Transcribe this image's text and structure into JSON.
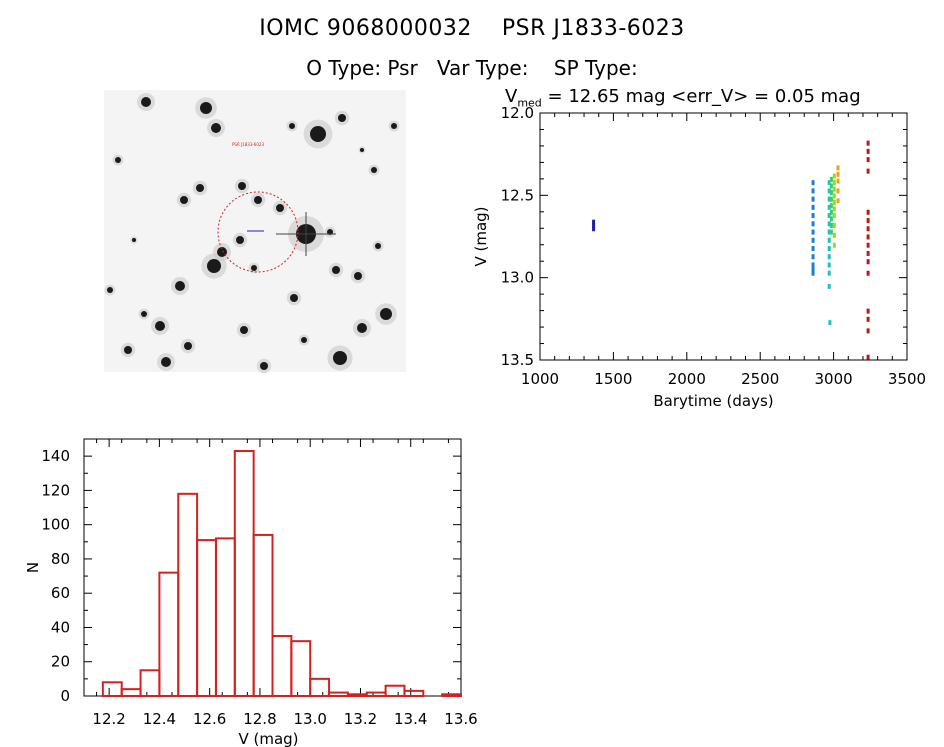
{
  "header": {
    "title": "IOMC 9068000032    PSR J1833-6023",
    "types": "O Type: Psr   Var Type:    SP Type:",
    "stats_prefix": "V",
    "stats_sub": "med",
    "stats_rest": " = 12.65 mag <err_V> = 0.05 mag"
  },
  "colors": {
    "hist": "#d62020",
    "circle": "#d62020",
    "marker": "#2020c0"
  },
  "image_panel": {
    "label_top": "PSR J1833-6023"
  },
  "chart_data": [
    {
      "type": "scatter",
      "title": "",
      "xlabel": "Barytime (days)",
      "ylabel": "V (mag)",
      "xlim": [
        1000,
        3500
      ],
      "ylim": [
        13.5,
        12.0
      ],
      "y_inverted": true,
      "xticks": [
        1000,
        1500,
        2000,
        2500,
        3000,
        3500
      ],
      "yticks": [
        "12.0",
        "12.5",
        "13.0",
        "13.5"
      ],
      "series": [
        {
          "color": "#2020a0",
          "x": [
            1365,
            1365,
            1365
          ],
          "y": [
            12.66,
            12.68,
            12.7
          ]
        },
        {
          "color": "#1e7fd0",
          "x": [
            2860,
            2860,
            2860,
            2860,
            2860,
            2860,
            2860,
            2860,
            2860,
            2860,
            2860,
            2860,
            2860
          ],
          "y": [
            12.42,
            12.47,
            12.52,
            12.57,
            12.62,
            12.67,
            12.72,
            12.77,
            12.82,
            12.87,
            12.92,
            12.95,
            12.97
          ]
        },
        {
          "color": "#20c0c0",
          "x": [
            2970,
            2970,
            2970,
            2970,
            2970,
            2970,
            2970,
            2970,
            2970,
            2970,
            2970,
            2970,
            2970,
            2975
          ],
          "y": [
            12.42,
            12.47,
            12.52,
            12.57,
            12.62,
            12.67,
            12.72,
            12.77,
            12.82,
            12.87,
            12.92,
            12.97,
            13.05,
            13.27
          ]
        },
        {
          "color": "#30d070",
          "x": [
            2985,
            2985,
            2985,
            2985,
            2985,
            2985,
            2985,
            2985,
            2985
          ],
          "y": [
            12.4,
            12.44,
            12.48,
            12.52,
            12.56,
            12.6,
            12.64,
            12.68,
            12.72
          ]
        },
        {
          "color": "#90e020",
          "x": [
            3005,
            3005,
            3005,
            3005,
            3005,
            3005,
            3005,
            3005,
            3005,
            3005
          ],
          "y": [
            12.38,
            12.42,
            12.46,
            12.5,
            12.54,
            12.58,
            12.62,
            12.68,
            12.74,
            12.8
          ]
        },
        {
          "color": "#f0a020",
          "x": [
            3030,
            3030,
            3030,
            3030,
            3030
          ],
          "y": [
            12.33,
            12.37,
            12.41,
            12.47,
            12.53
          ]
        },
        {
          "color": "#c01818",
          "x": [
            3235,
            3235,
            3235,
            3235,
            3235,
            3235,
            3235,
            3235,
            3235,
            3235,
            3235,
            3235,
            3235,
            3235,
            3235,
            3235
          ],
          "y": [
            12.18,
            12.23,
            12.28,
            12.35,
            12.6,
            12.65,
            12.7,
            12.75,
            12.8,
            12.85,
            12.9,
            12.97,
            13.2,
            13.25,
            13.32,
            13.48
          ]
        }
      ]
    },
    {
      "type": "bar",
      "title": "",
      "xlabel": "V (mag)",
      "ylabel": "N",
      "xlim": [
        12.1,
        13.6
      ],
      "ylim": [
        0,
        150
      ],
      "xticks": [
        "12.2",
        "12.4",
        "12.6",
        "12.8",
        "13.0",
        "13.2",
        "13.4",
        "13.6"
      ],
      "yticks": [
        "0",
        "20",
        "40",
        "60",
        "80",
        "100",
        "120",
        "140"
      ],
      "bin_start": 12.175,
      "bin_width": 0.075,
      "values": [
        8,
        4,
        15,
        72,
        118,
        91,
        92,
        143,
        94,
        35,
        32,
        10,
        2,
        1,
        2,
        6,
        3,
        0,
        1
      ]
    }
  ]
}
